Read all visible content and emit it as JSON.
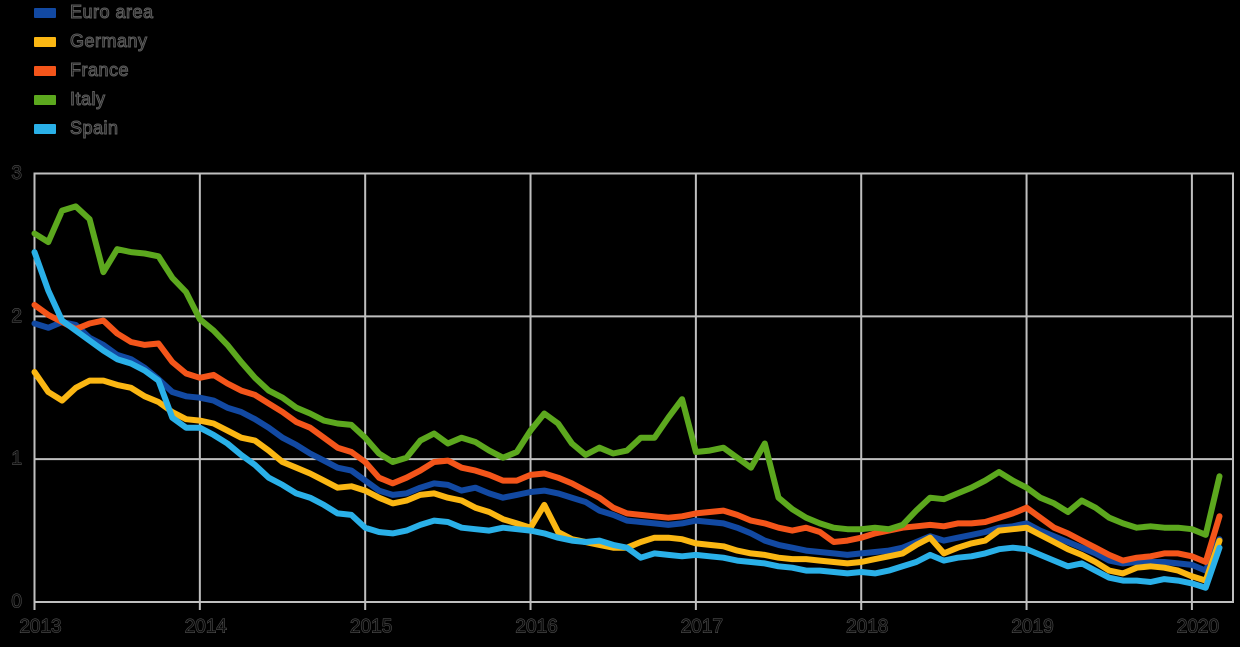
{
  "colors": {
    "background": "#000000",
    "grid": "#bfbfbf",
    "axis_text": "#0d0d0d",
    "axis_text_outline": "#5f5f5f"
  },
  "chart_data": {
    "type": "line",
    "title": "",
    "xlabel": "",
    "ylabel": "",
    "x_unit": "monthly",
    "x_start": "2013-01",
    "x_end": "2020-03",
    "x_tick_labels": [
      "2013",
      "2014",
      "2015",
      "2016",
      "2017",
      "2018",
      "2019",
      "2020"
    ],
    "y_ticks": [
      "0",
      "1",
      "2",
      "3"
    ],
    "ylim": [
      0,
      3
    ],
    "grid": true,
    "legend_position": "top-left",
    "series": [
      {
        "name": "Euro area",
        "color": "#1249a2",
        "values": [
          1.95,
          1.92,
          1.96,
          1.94,
          1.85,
          1.8,
          1.73,
          1.7,
          1.64,
          1.56,
          1.47,
          1.44,
          1.43,
          1.41,
          1.36,
          1.33,
          1.28,
          1.22,
          1.15,
          1.1,
          1.04,
          0.99,
          0.94,
          0.92,
          0.85,
          0.78,
          0.75,
          0.76,
          0.8,
          0.83,
          0.82,
          0.78,
          0.8,
          0.76,
          0.73,
          0.75,
          0.77,
          0.78,
          0.76,
          0.73,
          0.7,
          0.64,
          0.61,
          0.57,
          0.56,
          0.55,
          0.54,
          0.55,
          0.57,
          0.56,
          0.55,
          0.52,
          0.48,
          0.43,
          0.4,
          0.38,
          0.36,
          0.35,
          0.34,
          0.33,
          0.34,
          0.35,
          0.36,
          0.38,
          0.42,
          0.46,
          0.43,
          0.45,
          0.47,
          0.49,
          0.52,
          0.53,
          0.55,
          0.5,
          0.46,
          0.42,
          0.38,
          0.34,
          0.29,
          0.27,
          0.28,
          0.28,
          0.28,
          0.27,
          0.26,
          0.22,
          0.44
        ]
      },
      {
        "name": "Germany",
        "color": "#fbb713",
        "values": [
          1.61,
          1.47,
          1.41,
          1.5,
          1.55,
          1.55,
          1.52,
          1.5,
          1.44,
          1.4,
          1.33,
          1.28,
          1.27,
          1.25,
          1.2,
          1.15,
          1.13,
          1.06,
          0.98,
          0.94,
          0.9,
          0.85,
          0.8,
          0.81,
          0.78,
          0.73,
          0.69,
          0.71,
          0.75,
          0.76,
          0.73,
          0.71,
          0.66,
          0.63,
          0.58,
          0.55,
          0.52,
          0.68,
          0.49,
          0.44,
          0.42,
          0.4,
          0.38,
          0.38,
          0.42,
          0.45,
          0.45,
          0.44,
          0.41,
          0.4,
          0.39,
          0.36,
          0.34,
          0.33,
          0.31,
          0.3,
          0.3,
          0.29,
          0.28,
          0.27,
          0.28,
          0.3,
          0.32,
          0.34,
          0.4,
          0.45,
          0.34,
          0.38,
          0.41,
          0.43,
          0.5,
          0.51,
          0.52,
          0.47,
          0.42,
          0.37,
          0.33,
          0.28,
          0.22,
          0.2,
          0.24,
          0.25,
          0.24,
          0.22,
          0.18,
          0.15,
          0.43
        ]
      },
      {
        "name": "France",
        "color": "#f4551a",
        "values": [
          2.08,
          2.01,
          1.96,
          1.91,
          1.95,
          1.97,
          1.88,
          1.82,
          1.8,
          1.81,
          1.68,
          1.6,
          1.57,
          1.59,
          1.53,
          1.48,
          1.45,
          1.39,
          1.33,
          1.26,
          1.22,
          1.15,
          1.08,
          1.05,
          0.98,
          0.87,
          0.83,
          0.87,
          0.92,
          0.98,
          0.99,
          0.94,
          0.92,
          0.89,
          0.85,
          0.85,
          0.89,
          0.9,
          0.87,
          0.83,
          0.78,
          0.73,
          0.66,
          0.62,
          0.61,
          0.6,
          0.59,
          0.6,
          0.62,
          0.63,
          0.64,
          0.61,
          0.57,
          0.55,
          0.52,
          0.5,
          0.52,
          0.49,
          0.42,
          0.43,
          0.45,
          0.48,
          0.5,
          0.52,
          0.53,
          0.54,
          0.53,
          0.55,
          0.55,
          0.56,
          0.59,
          0.62,
          0.66,
          0.59,
          0.52,
          0.48,
          0.43,
          0.38,
          0.33,
          0.29,
          0.31,
          0.32,
          0.34,
          0.34,
          0.32,
          0.28,
          0.6
        ]
      },
      {
        "name": "Italy",
        "color": "#5ca81e",
        "values": [
          2.58,
          2.52,
          2.74,
          2.77,
          2.68,
          2.31,
          2.47,
          2.45,
          2.44,
          2.42,
          2.27,
          2.17,
          1.98,
          1.9,
          1.8,
          1.68,
          1.57,
          1.48,
          1.43,
          1.36,
          1.32,
          1.27,
          1.25,
          1.24,
          1.15,
          1.04,
          0.98,
          1.01,
          1.13,
          1.18,
          1.11,
          1.15,
          1.12,
          1.06,
          1.01,
          1.05,
          1.2,
          1.32,
          1.25,
          1.11,
          1.03,
          1.08,
          1.04,
          1.06,
          1.15,
          1.15,
          1.29,
          1.42,
          1.05,
          1.06,
          1.08,
          1.01,
          0.94,
          1.11,
          0.73,
          0.65,
          0.59,
          0.55,
          0.52,
          0.51,
          0.51,
          0.52,
          0.51,
          0.54,
          0.64,
          0.73,
          0.72,
          0.76,
          0.8,
          0.85,
          0.91,
          0.85,
          0.8,
          0.73,
          0.69,
          0.63,
          0.71,
          0.66,
          0.59,
          0.55,
          0.52,
          0.53,
          0.52,
          0.52,
          0.51,
          0.47,
          0.88
        ]
      },
      {
        "name": "Spain",
        "color": "#2ab0e8",
        "values": [
          2.45,
          2.18,
          1.97,
          1.9,
          1.83,
          1.76,
          1.7,
          1.67,
          1.62,
          1.55,
          1.29,
          1.22,
          1.22,
          1.17,
          1.11,
          1.03,
          0.96,
          0.87,
          0.82,
          0.76,
          0.73,
          0.68,
          0.62,
          0.61,
          0.52,
          0.49,
          0.48,
          0.5,
          0.54,
          0.57,
          0.56,
          0.52,
          0.51,
          0.5,
          0.52,
          0.51,
          0.5,
          0.48,
          0.45,
          0.43,
          0.42,
          0.43,
          0.4,
          0.38,
          0.31,
          0.34,
          0.33,
          0.32,
          0.33,
          0.32,
          0.31,
          0.29,
          0.28,
          0.27,
          0.25,
          0.24,
          0.22,
          0.22,
          0.21,
          0.2,
          0.21,
          0.2,
          0.22,
          0.25,
          0.28,
          0.33,
          0.29,
          0.31,
          0.32,
          0.34,
          0.37,
          0.38,
          0.37,
          0.33,
          0.29,
          0.25,
          0.27,
          0.22,
          0.17,
          0.15,
          0.15,
          0.14,
          0.16,
          0.15,
          0.13,
          0.1,
          0.38
        ]
      }
    ]
  }
}
